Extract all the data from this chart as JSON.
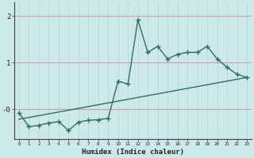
{
  "title": "",
  "xlabel": "Humidex (Indice chaleur)",
  "ylabel": "",
  "background_color": "#cce8e8",
  "line_color": "#2d6e63",
  "grid_color_h": "#c8a0a0",
  "grid_color_v": "#b8d8d8",
  "xlim": [
    -0.5,
    23.5
  ],
  "ylim": [
    -0.65,
    2.3
  ],
  "yticks": [
    0,
    1,
    2
  ],
  "ytick_labels": [
    "-0",
    "1",
    "2"
  ],
  "xticks": [
    0,
    1,
    2,
    3,
    4,
    5,
    6,
    7,
    8,
    9,
    10,
    11,
    12,
    13,
    14,
    15,
    16,
    17,
    18,
    19,
    20,
    21,
    22,
    23
  ],
  "data_x": [
    0,
    1,
    2,
    3,
    4,
    5,
    6,
    7,
    8,
    9,
    10,
    11,
    12,
    13,
    14,
    15,
    16,
    17,
    18,
    19,
    20,
    21,
    22,
    23
  ],
  "data_y": [
    -0.08,
    -0.38,
    -0.35,
    -0.3,
    -0.27,
    -0.46,
    -0.28,
    -0.24,
    -0.23,
    -0.2,
    0.6,
    0.54,
    1.92,
    1.22,
    1.35,
    1.08,
    1.18,
    1.22,
    1.22,
    1.35,
    1.08,
    0.9,
    0.75,
    0.68
  ],
  "trend_x": [
    0,
    23
  ],
  "trend_y": [
    -0.22,
    0.68
  ],
  "marker_size": 2.5,
  "linewidth": 1.0
}
